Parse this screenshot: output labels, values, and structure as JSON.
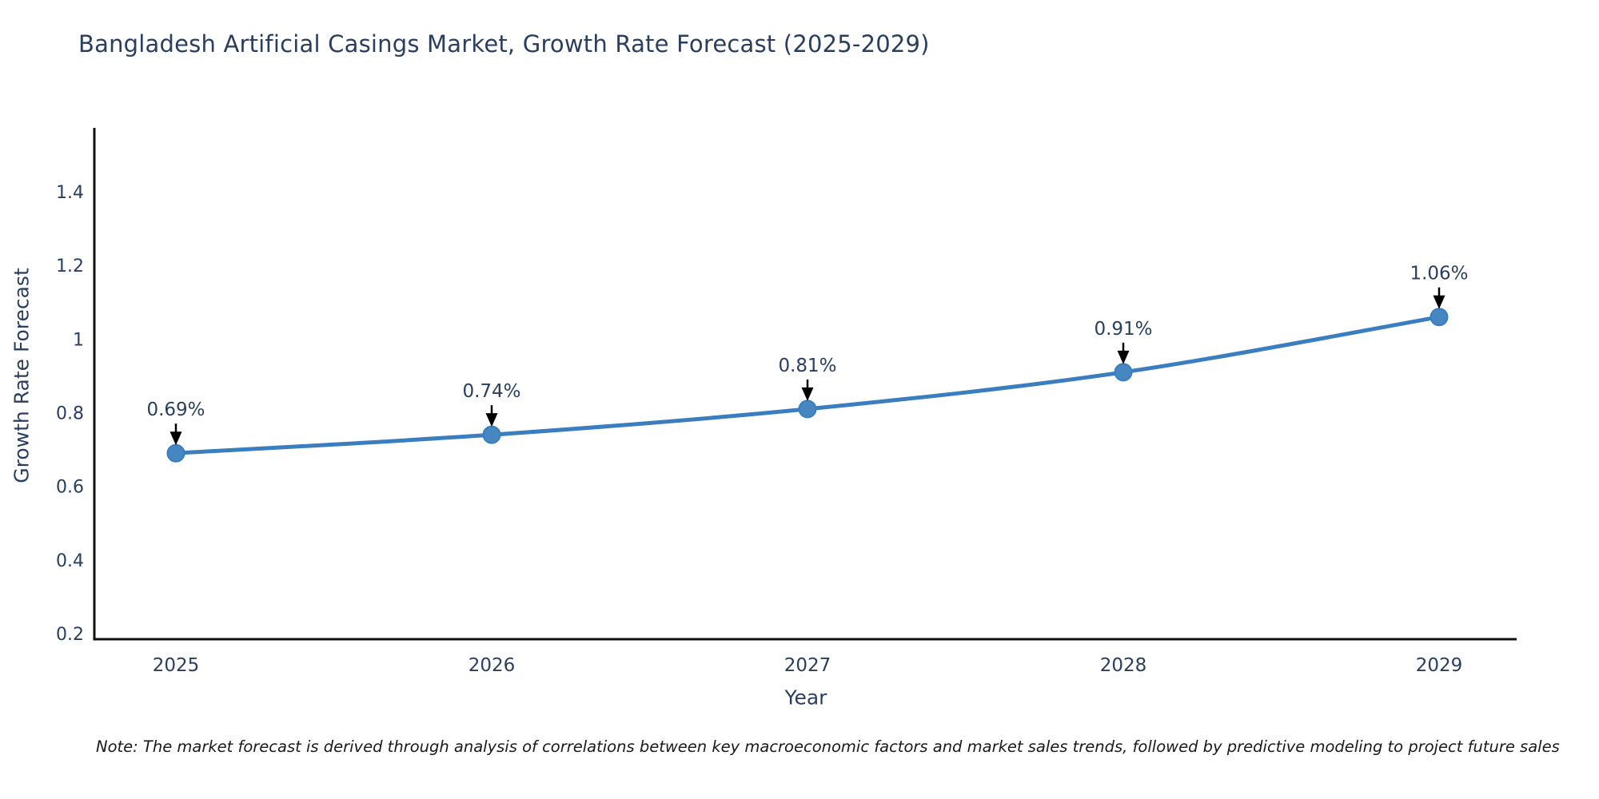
{
  "chart_data": {
    "type": "line",
    "title": "Bangladesh Artificial Casings Market, Growth Rate Forecast (2025-2029)",
    "xlabel": "Year",
    "ylabel": "Growth Rate Forecast",
    "categories": [
      "2025",
      "2026",
      "2027",
      "2028",
      "2029"
    ],
    "series": [
      {
        "name": "Growth Rate Forecast",
        "values": [
          0.69,
          0.74,
          0.81,
          0.91,
          1.06
        ]
      }
    ],
    "point_labels": [
      "0.69%",
      "0.74%",
      "0.81%",
      "0.91%",
      "1.06%"
    ],
    "y_ticks": [
      {
        "label": "0.2",
        "value": 0.2
      },
      {
        "label": "0.4",
        "value": 0.4
      },
      {
        "label": "0.6",
        "value": 0.6
      },
      {
        "label": "0.8",
        "value": 0.8
      },
      {
        "label": "1",
        "value": 1.0
      },
      {
        "label": "1.2",
        "value": 1.2
      },
      {
        "label": "1.4",
        "value": 1.4
      }
    ],
    "ylim": [
      0.2,
      1.45
    ],
    "grid": false,
    "legend_position": "none",
    "line_color": "#3a7ebf",
    "marker_color": "#4687c2",
    "marker_edge_color": "#3a7ebf",
    "axis_color": "#111111",
    "tick_color": "#2a3f5f",
    "annotation_text_color": "#2a3f5f",
    "annotation_arrow_color": "#000000"
  },
  "note": {
    "text": "Note: The market forecast is derived through analysis of correlations between key macroeconomic factors and market sales trends, followed by predictive modeling to project future sales"
  }
}
